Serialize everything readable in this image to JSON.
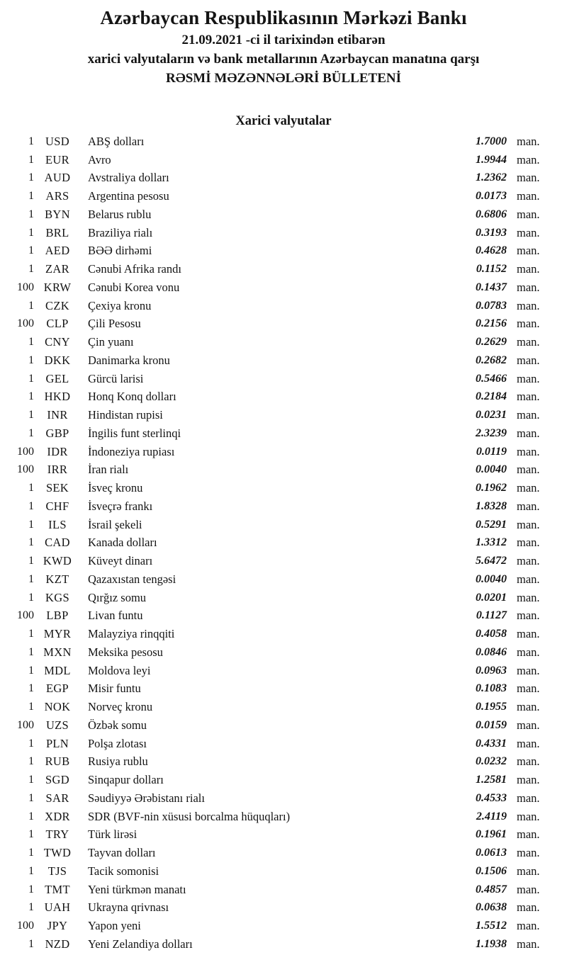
{
  "colors": {
    "text": "#141414",
    "background": "#ffffff"
  },
  "header": {
    "bank_name": "Azərbaycan Respublikasının Mərkəzi Bankı",
    "date_line": "21.09.2021 -ci il tarixindən etibarən",
    "subject_line": "xarici valyutaların və bank metallarının Azərbaycan manatına qarşı",
    "bulletin_line": "RƏSMİ MƏZƏNNƏLƏRİ BÜLLETENİ"
  },
  "section": {
    "title": "Xarici valyutalar"
  },
  "unit_label": "man.",
  "currencies": [
    {
      "qty": "1",
      "code": "USD",
      "name": "ABŞ dolları",
      "rate": "1.7000",
      "unit": "man."
    },
    {
      "qty": "1",
      "code": "EUR",
      "name": "Avro",
      "rate": "1.9944",
      "unit": "man."
    },
    {
      "qty": "1",
      "code": "AUD",
      "name": "Avstraliya dolları",
      "rate": "1.2362",
      "unit": "man."
    },
    {
      "qty": "1",
      "code": "ARS",
      "name": "Argentina pesosu",
      "rate": "0.0173",
      "unit": "man."
    },
    {
      "qty": "1",
      "code": "BYN",
      "name": "Belarus rublu",
      "rate": "0.6806",
      "unit": "man."
    },
    {
      "qty": "1",
      "code": "BRL",
      "name": "Braziliya rialı",
      "rate": "0.3193",
      "unit": "man."
    },
    {
      "qty": "1",
      "code": "AED",
      "name": "BƏƏ dirhəmi",
      "rate": "0.4628",
      "unit": "man."
    },
    {
      "qty": "1",
      "code": "ZAR",
      "name": "Cənubi Afrika randı",
      "rate": "0.1152",
      "unit": "man."
    },
    {
      "qty": "100",
      "code": "KRW",
      "name": "Cənubi Korea vonu",
      "rate": "0.1437",
      "unit": "man."
    },
    {
      "qty": "1",
      "code": "CZK",
      "name": "Çexiya kronu",
      "rate": "0.0783",
      "unit": "man."
    },
    {
      "qty": "100",
      "code": "CLP",
      "name": "Çili Pesosu",
      "rate": "0.2156",
      "unit": "man."
    },
    {
      "qty": "1",
      "code": "CNY",
      "name": "Çin yuanı",
      "rate": "0.2629",
      "unit": "man."
    },
    {
      "qty": "1",
      "code": "DKK",
      "name": "Danimarka kronu",
      "rate": "0.2682",
      "unit": "man."
    },
    {
      "qty": "1",
      "code": "GEL",
      "name": "Gürcü larisi",
      "rate": "0.5466",
      "unit": "man."
    },
    {
      "qty": "1",
      "code": "HKD",
      "name": "Honq Konq dolları",
      "rate": "0.2184",
      "unit": "man."
    },
    {
      "qty": "1",
      "code": "INR",
      "name": "Hindistan rupisi",
      "rate": "0.0231",
      "unit": "man."
    },
    {
      "qty": "1",
      "code": "GBP",
      "name": "İngilis funt sterlinqi",
      "rate": "2.3239",
      "unit": "man."
    },
    {
      "qty": "100",
      "code": "IDR",
      "name": "İndoneziya rupiası",
      "rate": "0.0119",
      "unit": "man."
    },
    {
      "qty": "100",
      "code": "IRR",
      "name": "İran rialı",
      "rate": "0.0040",
      "unit": "man."
    },
    {
      "qty": "1",
      "code": "SEK",
      "name": "İsveç kronu",
      "rate": "0.1962",
      "unit": "man."
    },
    {
      "qty": "1",
      "code": "CHF",
      "name": "İsveçrə frankı",
      "rate": "1.8328",
      "unit": "man."
    },
    {
      "qty": "1",
      "code": "ILS",
      "name": "İsrail şekeli",
      "rate": "0.5291",
      "unit": "man."
    },
    {
      "qty": "1",
      "code": "CAD",
      "name": "Kanada dolları",
      "rate": "1.3312",
      "unit": "man."
    },
    {
      "qty": "1",
      "code": "KWD",
      "name": "Küveyt dinarı",
      "rate": "5.6472",
      "unit": "man."
    },
    {
      "qty": "1",
      "code": "KZT",
      "name": "Qazaxıstan tengəsi",
      "rate": "0.0040",
      "unit": "man."
    },
    {
      "qty": "1",
      "code": "KGS",
      "name": "Qırğız somu",
      "rate": "0.0201",
      "unit": "man."
    },
    {
      "qty": "100",
      "code": "LBP",
      "name": "Livan funtu",
      "rate": "0.1127",
      "unit": "man."
    },
    {
      "qty": "1",
      "code": "MYR",
      "name": "Malayziya rinqqiti",
      "rate": "0.4058",
      "unit": "man."
    },
    {
      "qty": "1",
      "code": "MXN",
      "name": "Meksika pesosu",
      "rate": "0.0846",
      "unit": "man."
    },
    {
      "qty": "1",
      "code": "MDL",
      "name": "Moldova leyi",
      "rate": "0.0963",
      "unit": "man."
    },
    {
      "qty": "1",
      "code": "EGP",
      "name": "Misir funtu",
      "rate": "0.1083",
      "unit": "man."
    },
    {
      "qty": "1",
      "code": "NOK",
      "name": "Norveç kronu",
      "rate": "0.1955",
      "unit": "man."
    },
    {
      "qty": "100",
      "code": "UZS",
      "name": "Özbək somu",
      "rate": "0.0159",
      "unit": "man."
    },
    {
      "qty": "1",
      "code": "PLN",
      "name": "Polşa zlotası",
      "rate": "0.4331",
      "unit": "man."
    },
    {
      "qty": "1",
      "code": "RUB",
      "name": "Rusiya rublu",
      "rate": "0.0232",
      "unit": "man."
    },
    {
      "qty": "1",
      "code": "SGD",
      "name": "Sinqapur dolları",
      "rate": "1.2581",
      "unit": "man."
    },
    {
      "qty": "1",
      "code": "SAR",
      "name": "Səudiyyə Ərəbistanı rialı",
      "rate": "0.4533",
      "unit": "man."
    },
    {
      "qty": "1",
      "code": "XDR",
      "name": "SDR (BVF-nin xüsusi borcalma hüquqları)",
      "rate": "2.4119",
      "unit": "man."
    },
    {
      "qty": "1",
      "code": "TRY",
      "name": "Türk lirəsi",
      "rate": "0.1961",
      "unit": "man."
    },
    {
      "qty": "1",
      "code": "TWD",
      "name": "Tayvan dolları",
      "rate": "0.0613",
      "unit": "man."
    },
    {
      "qty": "1",
      "code": "TJS",
      "name": "Tacik somonisi",
      "rate": "0.1506",
      "unit": "man."
    },
    {
      "qty": "1",
      "code": "TMT",
      "name": "Yeni türkmən manatı",
      "rate": "0.4857",
      "unit": "man."
    },
    {
      "qty": "1",
      "code": "UAH",
      "name": "Ukrayna qrivnası",
      "rate": "0.0638",
      "unit": "man."
    },
    {
      "qty": "100",
      "code": "JPY",
      "name": "Yapon yeni",
      "rate": "1.5512",
      "unit": "man."
    },
    {
      "qty": "1",
      "code": "NZD",
      "name": "Yeni Zelandiya dolları",
      "rate": "1.1938",
      "unit": "man."
    }
  ]
}
